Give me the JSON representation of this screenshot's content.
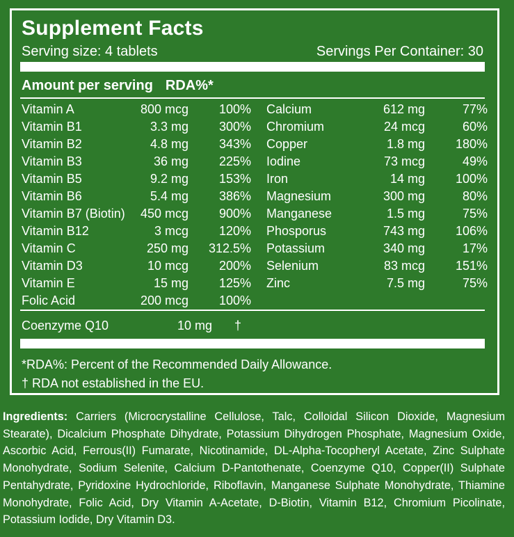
{
  "title": "Supplement Facts",
  "serving_size": "Serving size: 4 tablets",
  "servings_per_container": "Servings Per Container: 30",
  "header": {
    "amount_label": "Amount per serving",
    "rda_label": "RDA%*"
  },
  "nutrients_left": [
    {
      "name": "Vitamin A",
      "amount": "800 mcg",
      "rda": "100%"
    },
    {
      "name": "Vitamin B1",
      "amount": "3.3 mg",
      "rda": "300%"
    },
    {
      "name": "Vitamin B2",
      "amount": "4.8 mg",
      "rda": "343%"
    },
    {
      "name": "Vitamin B3",
      "amount": "36 mg",
      "rda": "225%"
    },
    {
      "name": "Vitamin B5",
      "amount": "9.2 mg",
      "rda": "153%"
    },
    {
      "name": "Vitamin B6",
      "amount": "5.4 mg",
      "rda": "386%"
    },
    {
      "name": "Vitamin B7 (Biotin)",
      "amount": "450 mcg",
      "rda": "900%"
    },
    {
      "name": "Vitamin B12",
      "amount": "3 mcg",
      "rda": "120%"
    },
    {
      "name": "Vitamin C",
      "amount": "250 mg",
      "rda": "312.5%"
    },
    {
      "name": "Vitamin D3",
      "amount": "10 mcg",
      "rda": "200%"
    },
    {
      "name": "Vitamin E",
      "amount": "15 mg",
      "rda": "125%"
    },
    {
      "name": "Folic Acid",
      "amount": "200 mcg",
      "rda": "100%"
    }
  ],
  "nutrients_right": [
    {
      "name": "Calcium",
      "amount": "612 mg",
      "rda": "77%"
    },
    {
      "name": "Chromium",
      "amount": "24 mcg",
      "rda": "60%"
    },
    {
      "name": "Copper",
      "amount": "1.8 mg",
      "rda": "180%"
    },
    {
      "name": "Iodine",
      "amount": "73 mcg",
      "rda": "49%"
    },
    {
      "name": "Iron",
      "amount": "14 mg",
      "rda": "100%"
    },
    {
      "name": "Magnesium",
      "amount": "300 mg",
      "rda": "80%"
    },
    {
      "name": "Manganese",
      "amount": "1.5 mg",
      "rda": "75%"
    },
    {
      "name": "Phosporus",
      "amount": "743 mg",
      "rda": "106%"
    },
    {
      "name": "Potassium",
      "amount": "340 mg",
      "rda": "17%"
    },
    {
      "name": "Selenium",
      "amount": "83 mcg",
      "rda": "151%"
    },
    {
      "name": "Zinc",
      "amount": "7.5 mg",
      "rda": "75%"
    }
  ],
  "coenzyme": {
    "name": "Coenzyme Q10",
    "amount": "10 mg",
    "rda": "†"
  },
  "footnotes": {
    "rda": "*RDA%: Percent of the Recommended Daily Allowance.",
    "dagger": "† RDA not established in the EU."
  },
  "ingredients": {
    "label": "Ingredients:",
    "text": "Carriers (Microcrystalline Cellulose, Talc, Colloidal Silicon Dioxide, Magnesium Stearate), Dicalcium Phosphate Dihydrate, Potassium Dihydrogen Phosphate, Magnesium Oxide, Ascorbic Acid, Ferrous(II) Fumarate, Nicotinamide, DL-Alpha-Tocopheryl Acetate, Zinc Sulphate Monohydrate, Sodium Selenite, Calcium D-Pantothenate, Coenzyme Q10, Copper(II) Sulphate Pentahydrate, Pyridoxine Hydrochloride, Riboflavin, Manganese Sulphate Monohydrate, Thiamine Monohydrate, Folic Acid, Dry Vitamin A-Acetate, D-Biotin, Vitamin B12, Chromium Picolinate, Potassium Iodide, Dry Vitamin D3."
  },
  "colors": {
    "background": "#2e7a2b",
    "text": "#ffffff"
  }
}
